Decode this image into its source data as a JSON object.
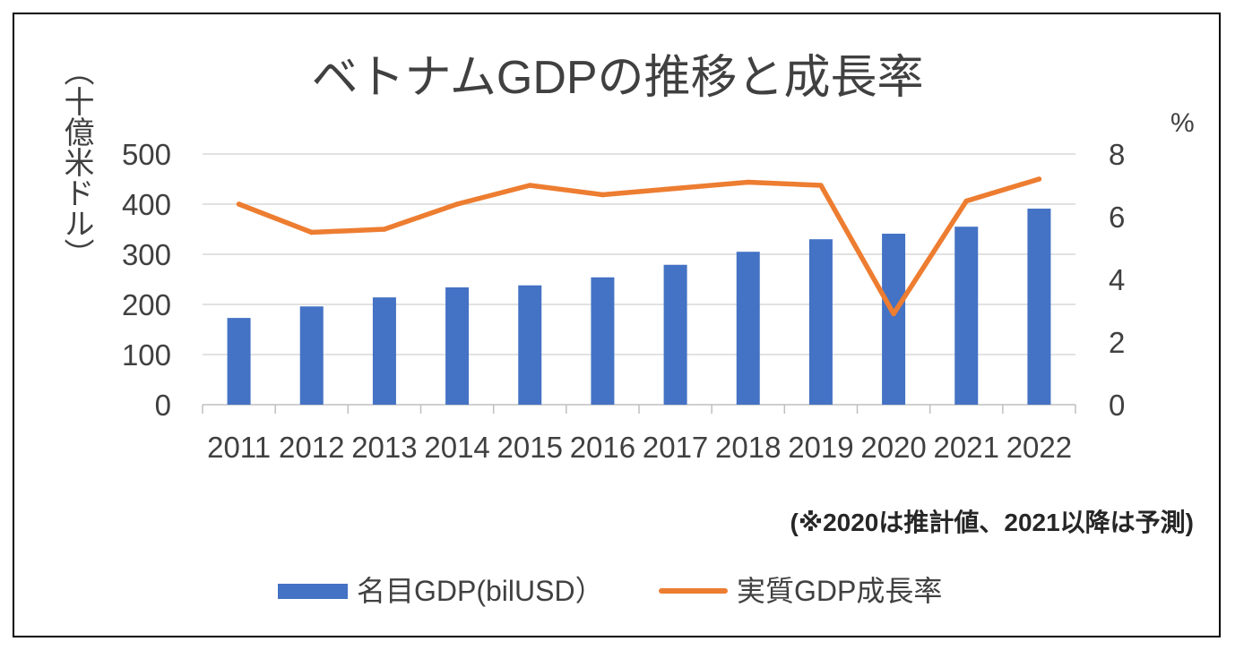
{
  "chart_data": {
    "type": "bar",
    "title": "ベトナムGDPの推移と成長率",
    "categories": [
      "2011",
      "2012",
      "2013",
      "2014",
      "2015",
      "2016",
      "2017",
      "2018",
      "2019",
      "2020",
      "2021",
      "2022"
    ],
    "series": [
      {
        "name": "名目GDP(bilUSD）",
        "type": "bar",
        "axis": "left",
        "values": [
          173,
          196,
          214,
          234,
          238,
          254,
          279,
          305,
          330,
          341,
          355,
          391
        ]
      },
      {
        "name": "実質GDP成長率",
        "type": "line",
        "axis": "right",
        "values": [
          6.4,
          5.5,
          5.6,
          6.4,
          7.0,
          6.7,
          6.9,
          7.1,
          7.0,
          2.9,
          6.5,
          7.2
        ]
      }
    ],
    "xlabel": "",
    "ylabel": "（十億米ドル）",
    "ylim": [
      0,
      500
    ],
    "yticks": [
      0,
      100,
      200,
      300,
      400,
      500
    ],
    "y2label": "%",
    "y2lim": [
      0,
      8
    ],
    "y2ticks": [
      0,
      2,
      4,
      6,
      8
    ],
    "grid": true,
    "legend": "bottom",
    "annotation": "(※2020は推計値、2021以降は予測)",
    "colors": {
      "bar": "#4472C4",
      "line": "#ED7D31",
      "grid": "#D9D9D9",
      "axis": "#BFBFBF"
    }
  }
}
